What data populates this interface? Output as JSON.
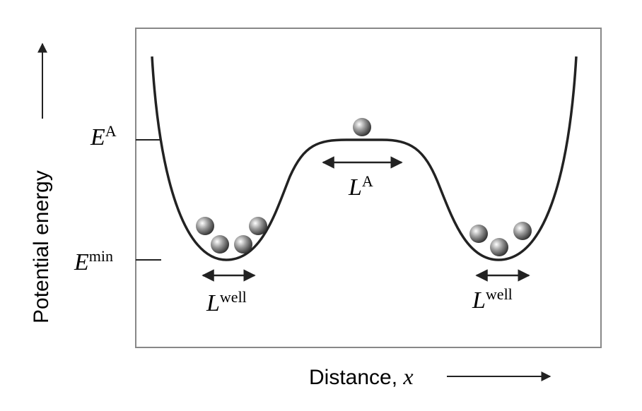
{
  "axes": {
    "y_label": "Potential energy",
    "x_label": "Distance, ",
    "x_symbol": "x"
  },
  "levels": [
    {
      "symbol": "E",
      "superscript": "A"
    },
    {
      "symbol": "E",
      "superscript": "min"
    }
  ],
  "lengths": [
    {
      "symbol": "L",
      "superscript": "A"
    },
    {
      "symbol": "L",
      "superscript": "well"
    },
    {
      "symbol": "L",
      "superscript": "well"
    }
  ]
}
